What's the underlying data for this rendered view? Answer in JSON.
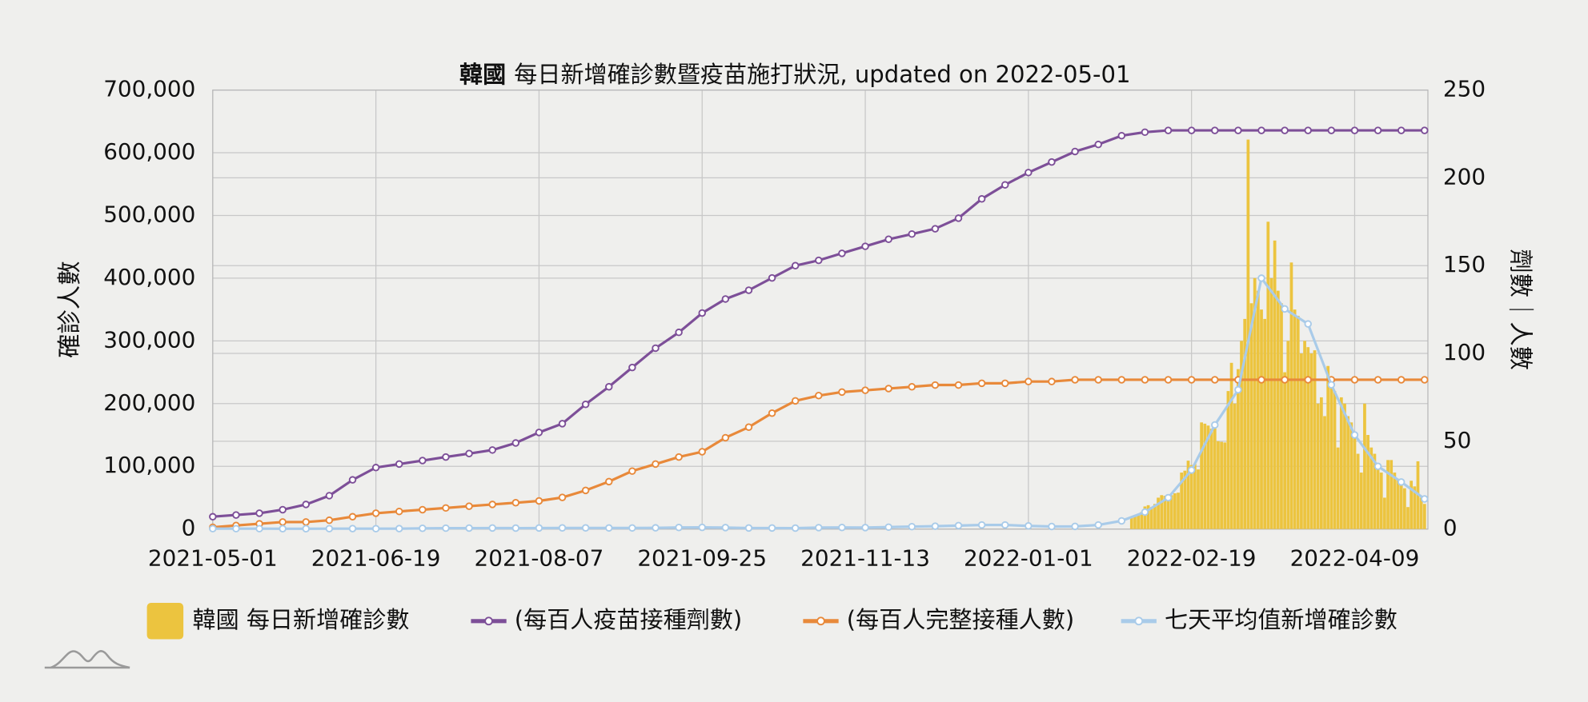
{
  "chart_data": {
    "type": "combo",
    "title_country": "韓國",
    "title": "每日新增確診數暨疫苗施打狀況, updated on 2022-05-01",
    "y_label": "確診人數",
    "y2_label": "劑數｜人數",
    "xlim": [
      "2021-05-01",
      "2022-05-01"
    ],
    "xticks": [
      "2021-05-01",
      "2021-06-19",
      "2021-08-07",
      "2021-09-25",
      "2021-11-13",
      "2022-01-01",
      "2022-02-19",
      "2022-04-09"
    ],
    "ylim": [
      0,
      700000
    ],
    "yticks": [
      0,
      {
        "value": 100000,
        "label": "100,000"
      },
      {
        "value": 200000,
        "label": "200,000"
      },
      {
        "value": 300000,
        "label": "300,000"
      },
      {
        "value": 400000,
        "label": "400,000"
      },
      {
        "value": 500000,
        "label": "500,000"
      },
      {
        "value": 600000,
        "label": "600,000"
      },
      {
        "value": 700000,
        "label": "700,000"
      }
    ],
    "y2lim": [
      0,
      250
    ],
    "y2ticks": [
      0,
      50,
      100,
      150,
      200,
      250
    ],
    "grid": true,
    "legend": "bottom",
    "x": [
      "2021-05-01",
      "2021-05-08",
      "2021-05-15",
      "2021-05-22",
      "2021-05-29",
      "2021-06-05",
      "2021-06-12",
      "2021-06-19",
      "2021-06-26",
      "2021-07-03",
      "2021-07-10",
      "2021-07-17",
      "2021-07-24",
      "2021-07-31",
      "2021-08-07",
      "2021-08-14",
      "2021-08-21",
      "2021-08-28",
      "2021-09-04",
      "2021-09-11",
      "2021-09-18",
      "2021-09-25",
      "2021-10-02",
      "2021-10-09",
      "2021-10-16",
      "2021-10-23",
      "2021-10-30",
      "2021-11-06",
      "2021-11-13",
      "2021-11-20",
      "2021-11-27",
      "2021-12-04",
      "2021-12-11",
      "2021-12-18",
      "2021-12-25",
      "2022-01-01",
      "2022-01-08",
      "2022-01-15",
      "2022-01-22",
      "2022-01-29",
      "2022-02-05",
      "2022-02-12",
      "2022-02-19",
      "2022-02-26",
      "2022-03-05",
      "2022-03-12",
      "2022-03-19",
      "2022-03-26",
      "2022-04-02",
      "2022-04-09",
      "2022-04-16",
      "2022-04-23",
      "2022-04-30"
    ],
    "series": [
      {
        "name": "韓國 每日新增確診數",
        "type": "bar",
        "color": "#ecc43f",
        "x": [
          "2022-02-01",
          "2022-02-02",
          "2022-02-03",
          "2022-02-04",
          "2022-02-05",
          "2022-02-06",
          "2022-02-07",
          "2022-02-08",
          "2022-02-09",
          "2022-02-10",
          "2022-02-11",
          "2022-02-12",
          "2022-02-13",
          "2022-02-14",
          "2022-02-15",
          "2022-02-16",
          "2022-02-17",
          "2022-02-18",
          "2022-02-19",
          "2022-02-20",
          "2022-02-21",
          "2022-02-22",
          "2022-02-23",
          "2022-02-24",
          "2022-02-25",
          "2022-02-26",
          "2022-02-27",
          "2022-02-28",
          "2022-03-01",
          "2022-03-02",
          "2022-03-03",
          "2022-03-04",
          "2022-03-05",
          "2022-03-06",
          "2022-03-07",
          "2022-03-08",
          "2022-03-09",
          "2022-03-10",
          "2022-03-11",
          "2022-03-12",
          "2022-03-13",
          "2022-03-14",
          "2022-03-15",
          "2022-03-16",
          "2022-03-17",
          "2022-03-18",
          "2022-03-19",
          "2022-03-20",
          "2022-03-21",
          "2022-03-22",
          "2022-03-23",
          "2022-03-24",
          "2022-03-25",
          "2022-03-26",
          "2022-03-27",
          "2022-03-28",
          "2022-03-29",
          "2022-03-30",
          "2022-03-31",
          "2022-04-01",
          "2022-04-02",
          "2022-04-03",
          "2022-04-04",
          "2022-04-05",
          "2022-04-06",
          "2022-04-07",
          "2022-04-08",
          "2022-04-09",
          "2022-04-10",
          "2022-04-11",
          "2022-04-12",
          "2022-04-13",
          "2022-04-14",
          "2022-04-15",
          "2022-04-16",
          "2022-04-17",
          "2022-04-18",
          "2022-04-19",
          "2022-04-20",
          "2022-04-21",
          "2022-04-22",
          "2022-04-23",
          "2022-04-24",
          "2022-04-25",
          "2022-04-26",
          "2022-04-27",
          "2022-04-28",
          "2022-04-29",
          "2022-04-30"
        ],
        "values": [
          18000,
          20000,
          22000,
          27000,
          36000,
          38000,
          35000,
          40000,
          50000,
          54000,
          53000,
          55000,
          54000,
          57000,
          58000,
          90000,
          93000,
          109000,
          102000,
          104000,
          95000,
          170000,
          168000,
          165000,
          160000,
          163000,
          140000,
          139000,
          138000,
          220000,
          265000,
          200000,
          255000,
          300000,
          335000,
          621000,
          360000,
          400000,
          380000,
          350000,
          335000,
          490000,
          400000,
          460000,
          380000,
          360000,
          250000,
          300000,
          425000,
          350000,
          340000,
          280000,
          300000,
          290000,
          280000,
          285000,
          200000,
          210000,
          180000,
          260000,
          230000,
          220000,
          130000,
          210000,
          200000,
          180000,
          170000,
          150000,
          120000,
          90000,
          200000,
          150000,
          130000,
          120000,
          100000,
          90000,
          50000,
          110000,
          110000,
          90000,
          80000,
          75000,
          65000,
          35000,
          77000,
          68000,
          108000,
          50000,
          40000
        ]
      },
      {
        "name": "(每百人疫苗接種劑數)",
        "type": "line",
        "axis": "y2",
        "color": "#7d4f98",
        "values": [
          7,
          8,
          9,
          11,
          14,
          19,
          28,
          35,
          37,
          39,
          41,
          43,
          45,
          49,
          55,
          60,
          71,
          81,
          92,
          103,
          112,
          123,
          131,
          136,
          143,
          150,
          153,
          157,
          161,
          165,
          168,
          171,
          177,
          188,
          196,
          203,
          209,
          215,
          219,
          224,
          226,
          227,
          227,
          227,
          227,
          227,
          227,
          227,
          227,
          227,
          227,
          227,
          227
        ]
      },
      {
        "name": "(每百人完整接種人數)",
        "type": "line",
        "axis": "y2",
        "color": "#e8893a",
        "values": [
          1,
          2,
          3,
          4,
          4,
          5,
          7,
          9,
          10,
          11,
          12,
          13,
          14,
          15,
          16,
          18,
          22,
          27,
          33,
          37,
          41,
          44,
          52,
          58,
          66,
          73,
          76,
          78,
          79,
          80,
          81,
          82,
          82,
          83,
          83,
          84,
          84,
          85,
          85,
          85,
          85,
          85,
          85,
          85,
          85,
          85,
          85,
          85,
          85,
          85,
          85,
          85,
          85
        ]
      },
      {
        "name": "七天平均值新增確診數",
        "type": "line",
        "color": "#a9cbe9",
        "values": [
          600,
          600,
          600,
          550,
          500,
          600,
          700,
          600,
          700,
          1200,
          1400,
          1500,
          1600,
          1500,
          1600,
          1800,
          1800,
          1700,
          1700,
          1900,
          2400,
          2600,
          2300,
          1600,
          1600,
          1500,
          2200,
          2400,
          2300,
          3000,
          3800,
          4500,
          5500,
          6500,
          6500,
          5000,
          4000,
          4200,
          6500,
          13000,
          27000,
          50000,
          94000,
          166000,
          222000,
          400000,
          351000,
          327000,
          230000,
          150000,
          100000,
          75000,
          48000
        ]
      }
    ]
  }
}
